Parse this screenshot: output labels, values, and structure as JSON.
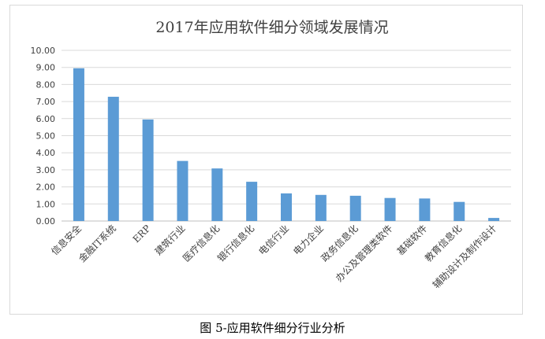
{
  "chart_data": {
    "type": "bar",
    "title": "2017年应用软件细分领域发展情况",
    "categories": [
      "信息安全",
      "金融IT系统",
      "ERP",
      "建筑行业",
      "医疗信息化",
      "银行信息化",
      "电信行业",
      "电力企业",
      "政务信息化",
      "办公及管理类软件",
      "基础软件",
      "教育信息化",
      "辅助设计及制作设计"
    ],
    "values": [
      8.95,
      7.28,
      5.95,
      3.52,
      3.08,
      2.3,
      1.62,
      1.53,
      1.48,
      1.35,
      1.32,
      1.12,
      0.18
    ],
    "ylim": [
      0,
      10
    ],
    "yticks": [
      "0.00",
      "1.00",
      "2.00",
      "3.00",
      "4.00",
      "5.00",
      "6.00",
      "7.00",
      "8.00",
      "9.00",
      "10.00"
    ],
    "grid": true,
    "bar_color": "#5b9bd5",
    "xlabel": "",
    "ylabel": ""
  },
  "caption": "图 5-应用软件细分行业分析"
}
